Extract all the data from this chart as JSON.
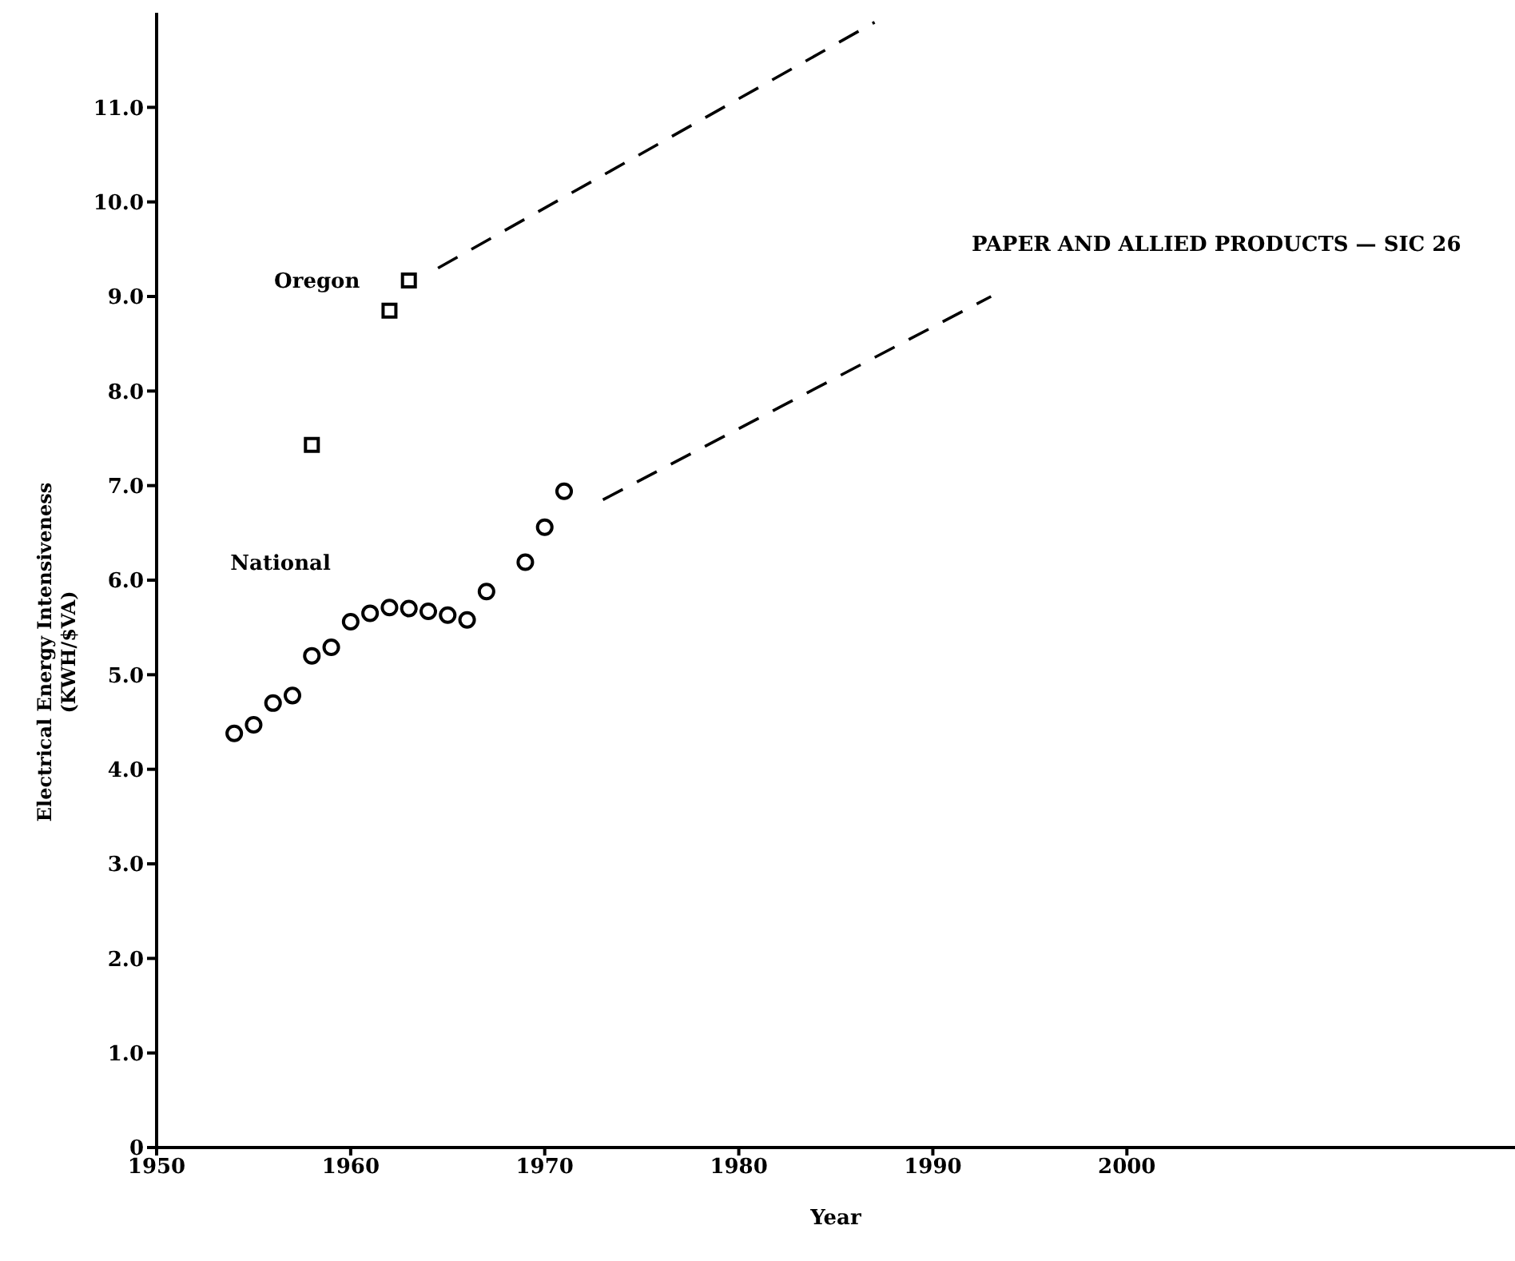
{
  "chart_data": {
    "type": "scatter",
    "annotations": [
      "PAPER AND ALLIED PRODUCTS — SIC 26"
    ],
    "xlabel": "Year",
    "ylabel": "Electrical Energy Intensiveness\n(KWH/$VA)",
    "xlim": [
      1950,
      2020
    ],
    "xticks": [
      1950,
      1960,
      1970,
      1980,
      1990,
      2000
    ],
    "ylim": [
      0,
      12
    ],
    "yticks": [
      {
        "value": 0,
        "label": "0"
      },
      {
        "value": 1,
        "label": "1.0"
      },
      {
        "value": 2,
        "label": "2.0"
      },
      {
        "value": 3,
        "label": "3.0"
      },
      {
        "value": 4,
        "label": "4.0"
      },
      {
        "value": 5,
        "label": "5.0"
      },
      {
        "value": 6,
        "label": "6.0"
      },
      {
        "value": 7,
        "label": "7.0"
      },
      {
        "value": 8,
        "label": "8.0"
      },
      {
        "value": 9,
        "label": "9.0"
      },
      {
        "value": 10,
        "label": "10.0"
      },
      {
        "value": 11,
        "label": "11.0"
      }
    ],
    "grid": false,
    "legend": false,
    "series": [
      {
        "name": "Oregon",
        "marker": "square",
        "color": "#000000",
        "x": [
          1958,
          1962,
          1963
        ],
        "values": [
          7.43,
          8.85,
          9.17
        ]
      },
      {
        "name": "National",
        "marker": "circle",
        "color": "#000000",
        "x": [
          1954,
          1955,
          1956,
          1957,
          1958,
          1959,
          1960,
          1961,
          1962,
          1963,
          1964,
          1965,
          1966,
          1967,
          1969,
          1970,
          1971
        ],
        "values": [
          4.38,
          4.47,
          4.7,
          4.78,
          5.2,
          5.29,
          5.56,
          5.65,
          5.71,
          5.7,
          5.67,
          5.63,
          5.58,
          5.88,
          6.19,
          6.56,
          6.94
        ]
      },
      {
        "type": "line",
        "line_style": "dashed",
        "marker": "none",
        "color": "#000000",
        "x": [
          1964.5,
          1987
        ],
        "values": [
          9.3,
          11.9
        ]
      },
      {
        "type": "line",
        "line_style": "dashed",
        "marker": "none",
        "color": "#000000",
        "x": [
          1973,
          1993
        ],
        "values": [
          6.85,
          9.0
        ]
      }
    ]
  }
}
